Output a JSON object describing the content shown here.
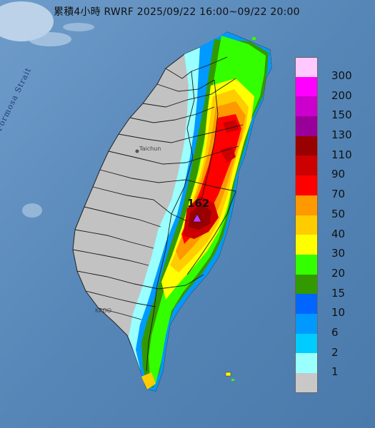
{
  "title": "累積4小時 RWRF 2025/09/22 16:00~09/22 20:00",
  "sea_label": "Formosa Strait",
  "city_labels": [
    "Taichun",
    "KAOO"
  ],
  "max_value": "162",
  "legend": {
    "labels": [
      "300",
      "200",
      "150",
      "130",
      "110",
      "90",
      "70",
      "50",
      "40",
      "30",
      "20",
      "15",
      "10",
      "6",
      "2",
      "1"
    ],
    "colors": [
      "#ffc8ff",
      "#ff00ff",
      "#cc00cc",
      "#990099",
      "#990000",
      "#cc0000",
      "#ff0000",
      "#ff9900",
      "#ffcc00",
      "#ffff00",
      "#33ff00",
      "#339900",
      "#0066ff",
      "#0099ff",
      "#00ccff",
      "#99ffff",
      "#c8c8c8"
    ]
  }
}
